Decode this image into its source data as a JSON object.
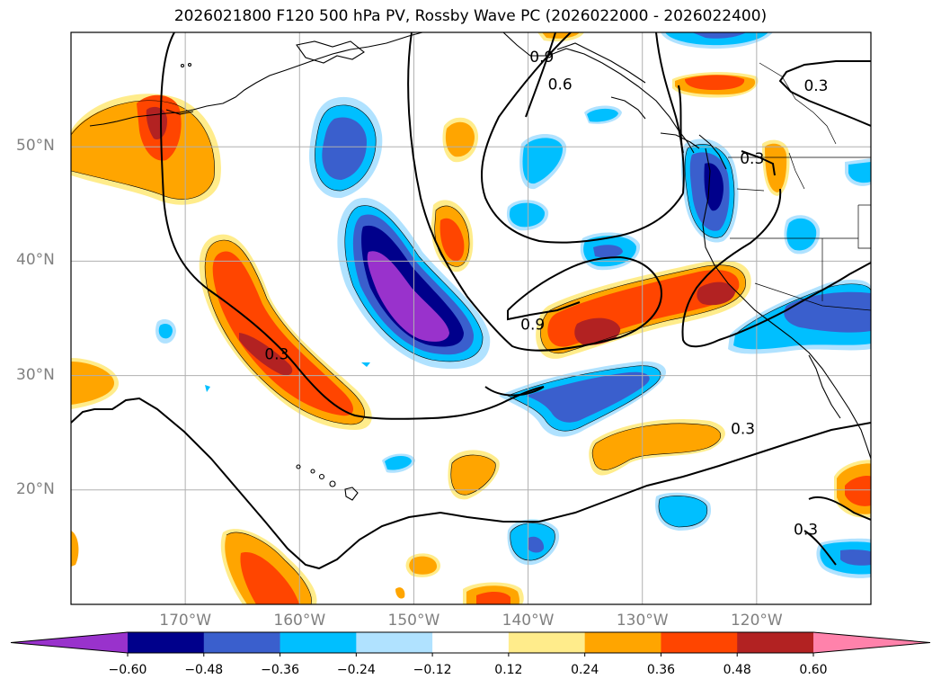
{
  "title": "2026021800 F120 500 hPa PV, Rossby Wave PC (2026022000 - 2026022400)",
  "map": {
    "projection": "plate-carree",
    "lon_range": [
      -180,
      -110
    ],
    "lat_range": [
      10,
      60
    ],
    "lat_ticks": [
      {
        "value": 20,
        "label": "20°N"
      },
      {
        "value": 30,
        "label": "30°N"
      },
      {
        "value": 40,
        "label": "40°N"
      },
      {
        "value": 50,
        "label": "50°N"
      }
    ],
    "lon_ticks": [
      {
        "value": -170,
        "label": "170°W"
      },
      {
        "value": -160,
        "label": "160°W"
      },
      {
        "value": -150,
        "label": "150°W"
      },
      {
        "value": -140,
        "label": "140°W"
      },
      {
        "value": -130,
        "label": "130°W"
      },
      {
        "value": -120,
        "label": "120°W"
      }
    ],
    "gridlines": true,
    "coastlines": true
  },
  "contour_labels": [
    {
      "text": "0.9",
      "lon": -138.8,
      "lat": 57.8
    },
    {
      "text": "0.6",
      "lon": -137.2,
      "lat": 55.4
    },
    {
      "text": "0.3",
      "lon": -114.8,
      "lat": 55.3
    },
    {
      "text": "0.3",
      "lon": -120.4,
      "lat": 48.9
    },
    {
      "text": "0.9",
      "lon": -139.6,
      "lat": 34.4
    },
    {
      "text": "0.3",
      "lon": -162.0,
      "lat": 31.8
    },
    {
      "text": "0.3",
      "lon": -121.2,
      "lat": 25.3
    },
    {
      "text": "0.3",
      "lon": -115.7,
      "lat": 16.5
    }
  ],
  "colorbar": {
    "ticks": [
      "−0.60",
      "−0.48",
      "−0.36",
      "−0.24",
      "−0.12",
      "0.12",
      "0.24",
      "0.36",
      "0.48",
      "0.60"
    ],
    "levels": [
      -0.6,
      -0.48,
      -0.36,
      -0.24,
      -0.12,
      0.12,
      0.24,
      0.36,
      0.48,
      0.6
    ],
    "colors": [
      "#9932cc",
      "#00008b",
      "#3a5fcd",
      "#00bfff",
      "#b0e2ff",
      "#ffffff",
      "#ffec8b",
      "#ffa500",
      "#ff4500",
      "#b22222",
      "#ff82ab"
    ],
    "extend": "both"
  }
}
